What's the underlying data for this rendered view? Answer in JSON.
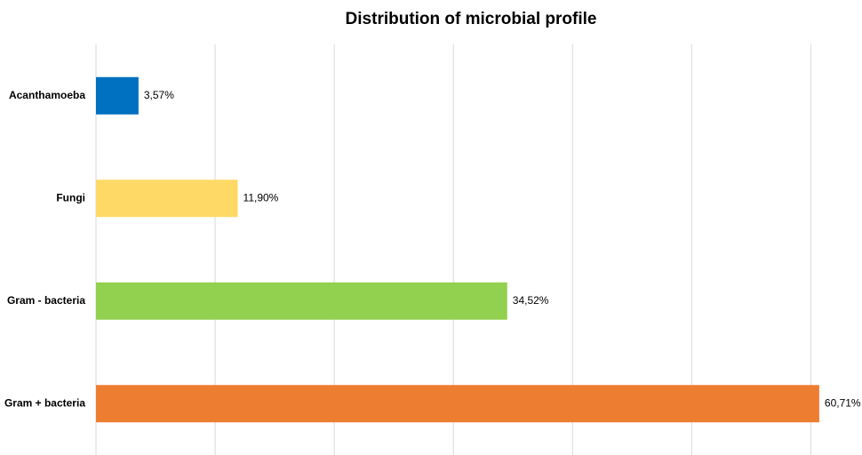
{
  "chart_data": {
    "type": "hbar",
    "title": "Distribution of microbial profile",
    "categories": [
      "Acanthamoeba",
      "Fungi",
      "Gram - bacteria",
      "Gram + bacteria"
    ],
    "values": [
      3.57,
      11.9,
      34.52,
      60.71
    ],
    "value_labels": [
      "3,57%",
      "11,90%",
      "34,52%",
      "60,71%"
    ],
    "colors": [
      "#0070c0",
      "#ffd966",
      "#92d050",
      "#ed7d31"
    ],
    "xlim": [
      0,
      64
    ],
    "xticks": [
      0,
      10,
      20,
      30,
      40,
      50,
      60
    ],
    "grid": true
  }
}
